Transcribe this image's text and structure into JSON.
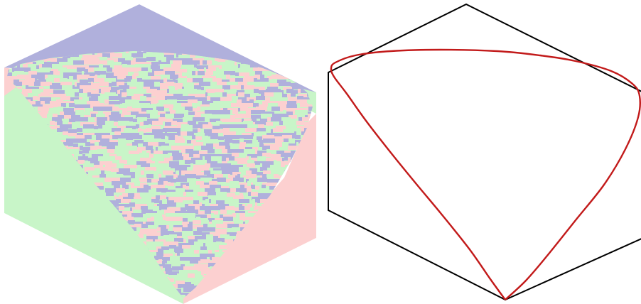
{
  "colors": {
    "background": "#ffffff",
    "tile_blue": "#b0b0dc",
    "tile_green": "#c8f5c8",
    "tile_pink": "#fcd0d0",
    "outline": "#000000",
    "arctic_curve": "#c21a1a"
  },
  "panels": [
    {
      "name": "lozenge-tiling",
      "description_hidden": true,
      "frozen_regions": [
        "blue-top",
        "pink-left-and-lower-right",
        "green-lower-left-and-upper-right"
      ]
    },
    {
      "name": "arctic-curve",
      "shape": "hexagon-with-inscribed-limit-curve"
    }
  ]
}
